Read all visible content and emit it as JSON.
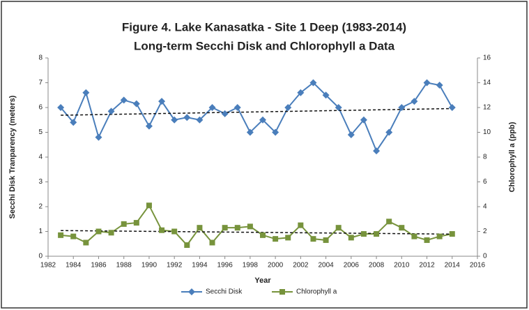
{
  "chart_data": {
    "type": "line",
    "title": "Figure 4. Lake Kanasatka - Site 1 Deep (1983-2014)",
    "subtitle": "Long-term Secchi Disk  and Chlorophyll a Data",
    "x_label": "Year",
    "y_label": "Secchi Disk Tranparency (meters)",
    "y2_label": "Chlorophyll a (ppb)",
    "x": [
      1983,
      1984,
      1985,
      1986,
      1987,
      1988,
      1989,
      1990,
      1991,
      1992,
      1993,
      1994,
      1995,
      1996,
      1997,
      1998,
      1999,
      2000,
      2001,
      2002,
      2003,
      2004,
      2005,
      2006,
      2007,
      2008,
      2009,
      2010,
      2011,
      2012,
      2013,
      2014
    ],
    "series": [
      {
        "name": "Secchi Disk",
        "color": "#4a7ebb",
        "marker": "diamond",
        "axis": "y",
        "values": [
          6.0,
          5.4,
          6.6,
          4.8,
          5.85,
          6.3,
          6.15,
          5.25,
          6.25,
          5.5,
          5.6,
          5.5,
          6.0,
          5.75,
          6.0,
          5.0,
          5.5,
          5.0,
          6.0,
          6.6,
          7.0,
          6.5,
          6.0,
          4.9,
          5.5,
          4.25,
          5.0,
          6.0,
          6.25,
          7.0,
          6.9,
          6.0
        ]
      },
      {
        "name": "Chlorophyll a",
        "color": "#77933c",
        "marker": "square",
        "axis": "y2",
        "values": [
          1.7,
          1.6,
          1.1,
          2.0,
          1.9,
          2.6,
          2.7,
          4.1,
          2.1,
          2.0,
          0.9,
          2.3,
          1.1,
          2.3,
          2.3,
          2.4,
          1.7,
          1.4,
          1.5,
          2.5,
          1.4,
          1.3,
          2.3,
          1.5,
          1.8,
          1.8,
          2.8,
          2.3,
          1.6,
          1.3,
          1.6,
          1.8
        ]
      }
    ],
    "trendline": true,
    "xlim": [
      1982,
      2016
    ],
    "xticks": [
      1982,
      1984,
      1986,
      1988,
      1990,
      1992,
      1994,
      1996,
      1998,
      2000,
      2002,
      2004,
      2006,
      2008,
      2010,
      2012,
      2014,
      2016
    ],
    "ylim": [
      0,
      8
    ],
    "yticks": [
      0,
      1,
      2,
      3,
      4,
      5,
      6,
      7,
      8
    ],
    "y2lim": [
      0,
      16
    ],
    "y2ticks": [
      0,
      2,
      4,
      6,
      8,
      10,
      12,
      14,
      16
    ],
    "legend": "bottom"
  }
}
